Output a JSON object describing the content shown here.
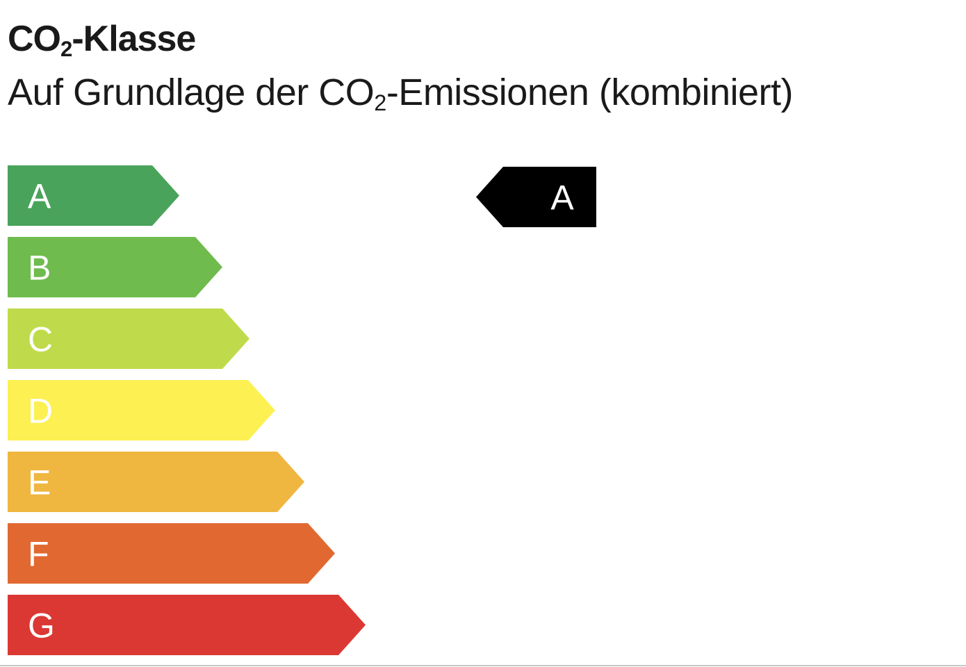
{
  "header": {
    "title_prefix": "CO",
    "title_sub": "2",
    "title_suffix": "-Klasse",
    "subtitle_prefix": "Auf Grundlage der CO",
    "subtitle_sub": "2",
    "subtitle_suffix": "-Emissionen (kombiniert)"
  },
  "classes": [
    {
      "label": "A",
      "color": "#4aa35b"
    },
    {
      "label": "B",
      "color": "#6fbb4d"
    },
    {
      "label": "C",
      "color": "#bfdb4b"
    },
    {
      "label": "D",
      "color": "#fdf053"
    },
    {
      "label": "E",
      "color": "#efb640"
    },
    {
      "label": "F",
      "color": "#e16931"
    },
    {
      "label": "G",
      "color": "#db3833"
    }
  ],
  "indicator": {
    "label": "A",
    "color": "#000000"
  }
}
